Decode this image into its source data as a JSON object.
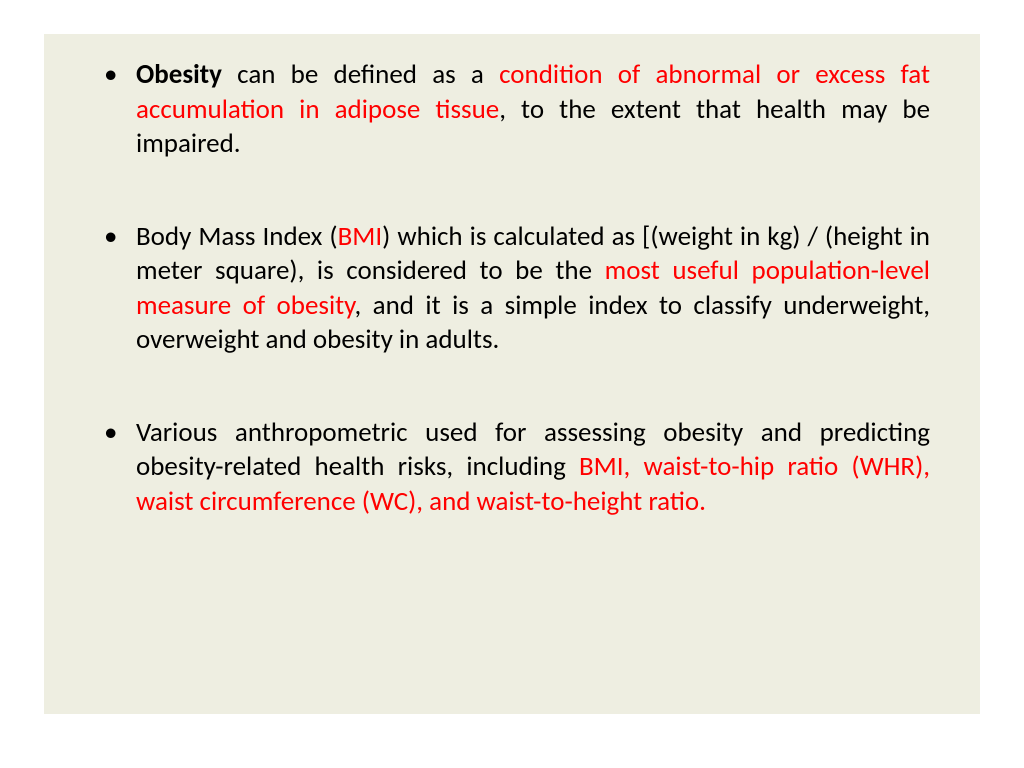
{
  "slide": {
    "background_color": "#ffffff",
    "content_background_color": "#eeeee1",
    "text_color": "#000000",
    "highlight_color": "#ff0000",
    "font_size_pt": 20,
    "text_align": "justify",
    "bullets": [
      {
        "runs": [
          {
            "text": "Obesity",
            "bold": true,
            "red": false
          },
          {
            "text": " can be defined as a ",
            "bold": false,
            "red": false
          },
          {
            "text": "condition of abnormal or excess fat accumulation in adipose tissue",
            "bold": false,
            "red": true
          },
          {
            "text": ", to the extent that health may be impaired.",
            "bold": false,
            "red": false
          }
        ]
      },
      {
        "runs": [
          {
            "text": "Body Mass Index (",
            "bold": false,
            "red": false
          },
          {
            "text": "BMI",
            "bold": false,
            "red": true
          },
          {
            "text": ") which is calculated as [(weight in kg) / (height in meter square), is considered to be the ",
            "bold": false,
            "red": false
          },
          {
            "text": "most useful population-level measure of obesity",
            "bold": false,
            "red": true
          },
          {
            "text": ", and it is a simple index to classify underweight, overweight and obesity in adults.",
            "bold": false,
            "red": false
          }
        ]
      },
      {
        "runs": [
          {
            "text": "Various anthropometric used for assessing obesity and predicting obesity-related health risks, including ",
            "bold": false,
            "red": false
          },
          {
            "text": "BMI, waist-to-hip ratio (WHR), waist circumference (WC), and waist-to-height ratio",
            "bold": false,
            "red": true
          },
          {
            "text": ".",
            "bold": false,
            "red": true
          }
        ]
      }
    ]
  }
}
